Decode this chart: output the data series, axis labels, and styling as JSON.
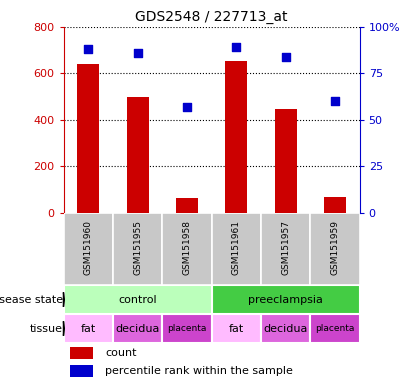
{
  "title": "GDS2548 / 227713_at",
  "samples": [
    "GSM151960",
    "GSM151955",
    "GSM151958",
    "GSM151961",
    "GSM151957",
    "GSM151959"
  ],
  "counts": [
    640,
    500,
    65,
    655,
    445,
    68
  ],
  "percentiles": [
    88,
    86,
    57,
    89,
    84,
    60
  ],
  "left_ylim": [
    0,
    800
  ],
  "left_yticks": [
    0,
    200,
    400,
    600,
    800
  ],
  "right_ylim": [
    0,
    100
  ],
  "right_yticks": [
    0,
    25,
    50,
    75,
    100
  ],
  "bar_color": "#cc0000",
  "dot_color": "#0000cc",
  "disease_states": [
    {
      "label": "control",
      "span": [
        0,
        3
      ],
      "color": "#bbffbb"
    },
    {
      "label": "preeclampsia",
      "span": [
        3,
        6
      ],
      "color": "#44cc44"
    }
  ],
  "tissues": [
    {
      "label": "fat",
      "span": [
        0,
        1
      ],
      "color": "#ffbbff"
    },
    {
      "label": "decidua",
      "span": [
        1,
        2
      ],
      "color": "#dd66dd"
    },
    {
      "label": "placenta",
      "span": [
        2,
        3
      ],
      "color": "#cc44cc"
    },
    {
      "label": "fat",
      "span": [
        3,
        4
      ],
      "color": "#ffbbff"
    },
    {
      "label": "decidua",
      "span": [
        4,
        5
      ],
      "color": "#dd66dd"
    },
    {
      "label": "placenta",
      "span": [
        5,
        6
      ],
      "color": "#cc44cc"
    }
  ],
  "gsm_bg_color": "#c8c8c8",
  "legend_count_color": "#cc0000",
  "legend_percentile_color": "#0000cc",
  "figsize": [
    4.11,
    3.84
  ],
  "dpi": 100
}
